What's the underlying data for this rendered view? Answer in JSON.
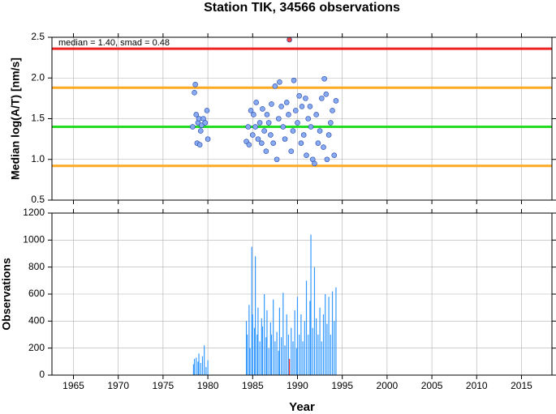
{
  "chart_data": [
    {
      "type": "scatter",
      "title": "Station TIK, 34566 observations",
      "annotation": "median = 1.40, smad = 0.48",
      "ylabel": "Median log(A/T) [nm/s]",
      "xlim": [
        1962.6,
        2018.4
      ],
      "xticks": [
        1965,
        1970,
        1975,
        1980,
        1985,
        1990,
        1995,
        2000,
        2005,
        2010,
        2015
      ],
      "ylim": [
        0.5,
        2.5
      ],
      "yticks": [
        0.5,
        {
          "value": 1,
          "label": "1.0"
        },
        1.5,
        {
          "value": 2,
          "label": "2.0"
        },
        2.5
      ],
      "grid": true,
      "hlines": [
        {
          "value": 2.36,
          "color": "#ee2222"
        },
        {
          "value": 1.88,
          "color": "#ffaa22"
        },
        {
          "value": 1.4,
          "color": "#22dd22"
        },
        {
          "value": 0.92,
          "color": "#ffaa22"
        }
      ],
      "series": [
        {
          "color": "#88aaf0",
          "x": [
            1978.3,
            1978.5,
            1978.6,
            1978.7,
            1978.8,
            1978.9,
            1979.0,
            1979.1,
            1979.2,
            1979.3,
            1979.5,
            1979.7,
            1979.9,
            1980.0,
            1984.3,
            1984.5,
            1984.6,
            1984.8,
            1985.0,
            1985.1,
            1985.3,
            1985.4,
            1985.6,
            1985.8,
            1986.0,
            1986.1,
            1986.3,
            1986.5,
            1986.6,
            1986.8,
            1987.0,
            1987.1,
            1987.3,
            1987.5,
            1987.7,
            1987.9,
            1988.0,
            1988.2,
            1988.4,
            1988.6,
            1988.8,
            1989.0,
            1989.3,
            1989.5,
            1989.6,
            1989.8,
            1990.0,
            1990.2,
            1990.4,
            1990.5,
            1990.7,
            1990.9,
            1991.0,
            1991.2,
            1991.4,
            1991.5,
            1991.7,
            1991.9,
            1992.1,
            1992.3,
            1992.5,
            1992.7,
            1992.9,
            1993.0,
            1993.2,
            1993.3,
            1993.5,
            1993.7,
            1993.9,
            1994.1,
            1994.3
          ],
          "values": [
            1.4,
            1.82,
            1.92,
            1.55,
            1.2,
            1.45,
            1.5,
            1.18,
            1.35,
            1.42,
            1.5,
            1.45,
            1.6,
            1.25,
            1.22,
            1.4,
            1.18,
            1.6,
            1.3,
            1.55,
            1.4,
            1.7,
            1.25,
            1.45,
            1.2,
            1.62,
            1.35,
            1.1,
            1.55,
            1.45,
            1.3,
            1.68,
            1.2,
            1.9,
            1.0,
            1.5,
            1.95,
            1.65,
            1.4,
            1.25,
            1.7,
            1.55,
            1.1,
            1.35,
            1.97,
            1.6,
            1.45,
            1.78,
            1.2,
            1.65,
            1.3,
            1.75,
            1.05,
            1.5,
            1.65,
            1.4,
            1.0,
            0.95,
            1.55,
            1.2,
            1.35,
            1.75,
            1.15,
            1.99,
            1.8,
            1.0,
            1.3,
            1.45,
            1.6,
            1.05,
            1.72
          ]
        },
        {
          "color": "#ee4444",
          "x": [
            1989.1
          ],
          "values": [
            2.47
          ]
        }
      ]
    },
    {
      "type": "bar",
      "xlabel": "Year",
      "ylabel": "Observations",
      "xlim": [
        1962.6,
        2018.4
      ],
      "xticks": [
        1965,
        1970,
        1975,
        1980,
        1985,
        1990,
        1995,
        2000,
        2005,
        2010,
        2015
      ],
      "ylim": [
        0,
        1200
      ],
      "yticks": [
        0,
        200,
        400,
        600,
        800,
        1000,
        1200
      ],
      "grid": true,
      "series": [
        {
          "color": "#3399ff",
          "x": [
            1978.4,
            1978.5,
            1978.7,
            1978.9,
            1979.0,
            1979.2,
            1979.4,
            1979.6,
            1979.8,
            1980.0,
            1984.3,
            1984.4,
            1984.6,
            1984.7,
            1984.9,
            1985.0,
            1985.2,
            1985.3,
            1985.5,
            1985.6,
            1985.8,
            1986.0,
            1986.1,
            1986.3,
            1986.5,
            1986.6,
            1986.8,
            1987.0,
            1987.1,
            1987.3,
            1987.5,
            1987.7,
            1987.9,
            1988.0,
            1988.2,
            1988.4,
            1988.6,
            1988.8,
            1989.0,
            1989.3,
            1989.5,
            1989.7,
            1989.9,
            1990.0,
            1990.2,
            1990.4,
            1990.6,
            1990.8,
            1991.0,
            1991.2,
            1991.4,
            1991.5,
            1991.7,
            1991.9,
            1992.1,
            1992.3,
            1992.5,
            1992.7,
            1992.9,
            1993.1,
            1993.3,
            1993.5,
            1993.7,
            1993.9,
            1994.1,
            1994.3
          ],
          "values": [
            80,
            120,
            130,
            100,
            160,
            90,
            140,
            220,
            60,
            110,
            400,
            300,
            520,
            200,
            950,
            450,
            350,
            880,
            300,
            500,
            250,
            420,
            360,
            600,
            280,
            480,
            200,
            390,
            300,
            560,
            250,
            320,
            180,
            500,
            280,
            610,
            220,
            450,
            300,
            350,
            250,
            480,
            200,
            580,
            300,
            450,
            250,
            400,
            700,
            300,
            550,
            1040,
            350,
            800,
            420,
            300,
            500,
            250,
            450,
            600,
            380,
            580,
            300,
            620,
            400,
            650
          ]
        },
        {
          "color": "#ee2222",
          "x": [
            1989.1
          ],
          "values": [
            120
          ]
        }
      ]
    }
  ]
}
